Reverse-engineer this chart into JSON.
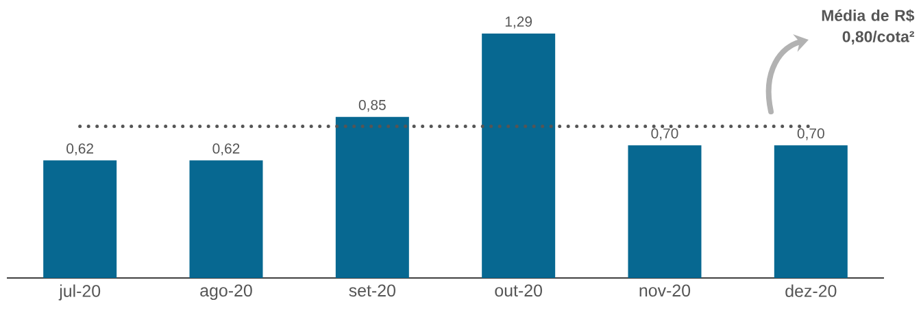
{
  "chart_data": {
    "type": "bar",
    "categories": [
      "jul-20",
      "ago-20",
      "set-20",
      "out-20",
      "nov-20",
      "dez-20"
    ],
    "values": [
      0.62,
      0.62,
      0.85,
      1.29,
      0.7,
      0.7
    ],
    "value_labels": [
      "0,62",
      "0,62",
      "0,85",
      "1,29",
      "0,70",
      "0,70"
    ],
    "color": "#076891",
    "tick_labels": "x",
    "ref_lines": [
      {
        "axis": "y",
        "value": 0.8,
        "label": "Média de R$ 0,80/cota²",
        "color": "#555555",
        "line_style": "dotted"
      }
    ]
  }
}
